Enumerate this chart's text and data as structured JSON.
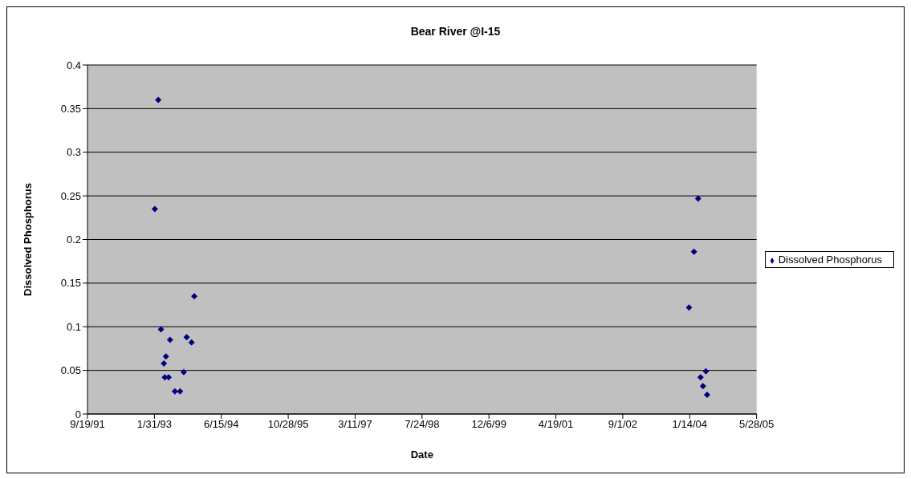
{
  "chart_data": {
    "type": "scatter",
    "title": "Bear River @I-15",
    "xlabel": "Date",
    "ylabel": "Dissolved Phosphorus",
    "x": [
      "1993-03-01",
      "1993-02-03",
      "1993-11-25",
      "1993-03-21",
      "1993-05-28",
      "1993-09-29",
      "1993-11-05",
      "1993-04-27",
      "1993-04-12",
      "1993-09-07",
      "1993-04-19",
      "1993-05-17",
      "1993-07-03",
      "1993-08-11",
      "2004-03-17",
      "2004-02-15",
      "2004-01-09",
      "2004-05-14",
      "2004-04-04",
      "2004-04-22",
      "2004-05-23"
    ],
    "series": [
      {
        "name": "Dissolved Phosphorus",
        "color": "#000080",
        "values": [
          0.36,
          0.235,
          0.135,
          0.097,
          0.085,
          0.088,
          0.082,
          0.066,
          0.058,
          0.048,
          0.042,
          0.042,
          0.026,
          0.026,
          0.247,
          0.186,
          0.122,
          0.049,
          0.042,
          0.032,
          0.022
        ]
      }
    ],
    "xlim": [
      "1991-09-19",
      "2005-05-28"
    ],
    "xticks": [
      {
        "value": "1991-09-19",
        "label": "9/19/91"
      },
      {
        "value": "1993-01-31",
        "label": "1/31/93"
      },
      {
        "value": "1994-06-15",
        "label": "6/15/94"
      },
      {
        "value": "1995-10-28",
        "label": "10/28/95"
      },
      {
        "value": "1997-03-11",
        "label": "3/11/97"
      },
      {
        "value": "1998-07-24",
        "label": "7/24/98"
      },
      {
        "value": "1999-12-06",
        "label": "12/6/99"
      },
      {
        "value": "2001-04-19",
        "label": "4/19/01"
      },
      {
        "value": "2002-09-01",
        "label": "9/1/02"
      },
      {
        "value": "2004-01-14",
        "label": "1/14/04"
      },
      {
        "value": "2005-05-28",
        "label": "5/28/05"
      }
    ],
    "ylim": [
      0,
      0.4
    ],
    "yticks": [
      0,
      0.05,
      0.1,
      0.15,
      0.2,
      0.25,
      0.3,
      0.35,
      0.4
    ],
    "grid": "y",
    "legend": "right",
    "marker": "diamond"
  }
}
